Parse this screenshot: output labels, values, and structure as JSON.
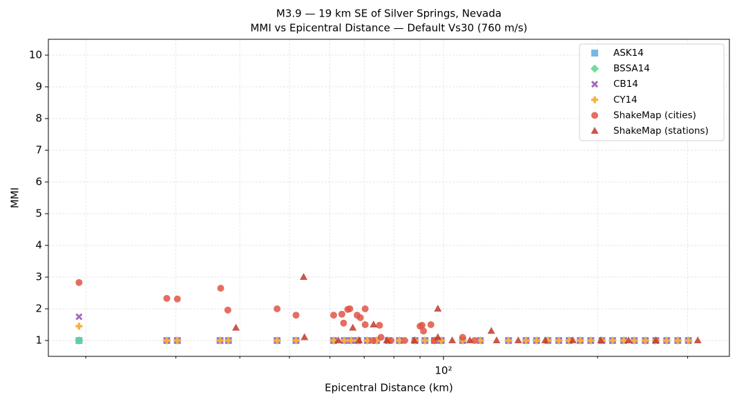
{
  "chart_data": {
    "type": "scatter",
    "title": "M3.9 — 19 km SE of Silver Springs, Nevada",
    "subtitle": "MMI vs Epicentral Distance — Default Vs30 (760 m/s)",
    "x_label": "Epicentral Distance (km)",
    "y_label": "MMI",
    "xscale": "log",
    "xlim": [
      16.9,
      362
    ],
    "ylim": [
      0.5,
      10.5
    ],
    "xticks": [
      {
        "value": 100,
        "label": "10²"
      }
    ],
    "xminor_ticks": [
      20,
      30,
      40,
      50,
      60,
      70,
      80,
      90,
      200,
      300
    ],
    "yticks": [
      1,
      2,
      3,
      4,
      5,
      6,
      7,
      8,
      9,
      10
    ],
    "grid": true,
    "legend": "upper right",
    "series": [
      {
        "name": "ASK14",
        "color": "#5dade2",
        "marker": "square",
        "x": [
          19.4,
          28.8,
          30.2,
          36.6,
          38.0,
          47.3,
          51.5,
          61,
          64,
          66,
          68,
          71,
          74,
          78,
          82,
          88,
          92,
          96,
          99,
          109,
          118,
          134,
          145,
          152,
          160,
          168,
          176,
          185,
          194,
          204,
          214,
          225,
          236,
          248,
          260,
          273,
          287,
          301
        ],
        "values": [
          1,
          1,
          1,
          1,
          1,
          1,
          1,
          1,
          1,
          1,
          1,
          1,
          1,
          1,
          1,
          1,
          1,
          1,
          1,
          1,
          1,
          1,
          1,
          1,
          1,
          1,
          1,
          1,
          1,
          1,
          1,
          1,
          1,
          1,
          1,
          1,
          1,
          1
        ]
      },
      {
        "name": "BSSA14",
        "color": "#58d68d",
        "marker": "diamond",
        "x": [
          19.4,
          28.8,
          30.2,
          36.6,
          38.0,
          47.3,
          51.5,
          61,
          64,
          66,
          68,
          71,
          74,
          78,
          82,
          88,
          92,
          96,
          99,
          109,
          118,
          134,
          145,
          152,
          160,
          168,
          176,
          185,
          194,
          204,
          214,
          225,
          236,
          248,
          260,
          273,
          287,
          301
        ],
        "values": [
          1,
          1,
          1,
          1,
          1,
          1,
          1,
          1,
          1,
          1,
          1,
          1,
          1,
          1,
          1,
          1,
          1,
          1,
          1,
          1,
          1,
          1,
          1,
          1,
          1,
          1,
          1,
          1,
          1,
          1,
          1,
          1,
          1,
          1,
          1,
          1,
          1,
          1
        ]
      },
      {
        "name": "CB14",
        "color": "#a569bd",
        "marker": "x",
        "x": [
          19.4,
          28.8,
          30.2,
          36.6,
          38.0,
          47.3,
          51.5,
          61,
          64,
          66,
          68,
          71,
          74,
          78,
          82,
          88,
          92,
          96,
          99,
          109,
          118,
          134,
          145,
          152,
          160,
          168,
          176,
          185,
          194,
          204,
          214,
          225,
          236,
          248,
          260,
          273,
          287,
          301
        ],
        "values": [
          1.75,
          1,
          1,
          1,
          1,
          1,
          1,
          1,
          1,
          1,
          1,
          1,
          1,
          1,
          1,
          1,
          1,
          1,
          1,
          1,
          1,
          1,
          1,
          1,
          1,
          1,
          1,
          1,
          1,
          1,
          1,
          1,
          1,
          1,
          1,
          1,
          1,
          1
        ]
      },
      {
        "name": "CY14",
        "color": "#f5b041",
        "marker": "plus",
        "x": [
          19.4,
          28.8,
          30.2,
          36.6,
          38.0,
          47.3,
          51.5,
          61,
          64,
          66,
          68,
          71,
          74,
          78,
          82,
          88,
          92,
          96,
          99,
          109,
          118,
          134,
          145,
          152,
          160,
          168,
          176,
          185,
          194,
          204,
          214,
          225,
          236,
          248,
          260,
          273,
          287,
          301
        ],
        "values": [
          1.45,
          1,
          1,
          1,
          1,
          1,
          1,
          1,
          1,
          1,
          1,
          1,
          1,
          1,
          1,
          1,
          1,
          1,
          1,
          1,
          1,
          1,
          1,
          1,
          1,
          1,
          1,
          1,
          1,
          1,
          1,
          1,
          1,
          1,
          1,
          1,
          1,
          1
        ]
      },
      {
        "name": "ShakeMap (cities)",
        "color": "#e05545",
        "marker": "circle",
        "x": [
          19.4,
          28.8,
          30.2,
          36.7,
          37.9,
          47.3,
          51.5,
          61,
          63.3,
          63.8,
          65,
          65.6,
          67.8,
          68.8,
          70.3,
          70.3,
          75,
          75.5,
          90,
          90.8,
          91.4,
          94.5,
          109,
          72.8,
          79,
          84,
          96,
          115
        ],
        "values": [
          2.83,
          2.33,
          2.31,
          2.65,
          1.96,
          2.0,
          1.8,
          1.8,
          1.83,
          1.55,
          1.98,
          2.0,
          1.8,
          1.72,
          2.0,
          1.5,
          1.48,
          1.1,
          1.45,
          1.48,
          1.3,
          1.5,
          1.1,
          1,
          1,
          1,
          1,
          1
        ]
      },
      {
        "name": "ShakeMap (stations)",
        "color": "#c0392b",
        "marker": "triangle",
        "x": [
          39.3,
          53.3,
          53.5,
          66.5,
          73,
          97.5,
          97.5,
          124,
          62.3,
          68.4,
          77.5,
          87.7,
          104,
          112.6,
          127,
          140,
          158,
          179,
          203,
          230,
          260,
          314
        ],
        "values": [
          1.4,
          3.0,
          1.1,
          1.4,
          1.5,
          2.0,
          1.1,
          1.3,
          1,
          1,
          1,
          1,
          1,
          1,
          1,
          1,
          1,
          1,
          1,
          1,
          1,
          1
        ]
      }
    ]
  }
}
